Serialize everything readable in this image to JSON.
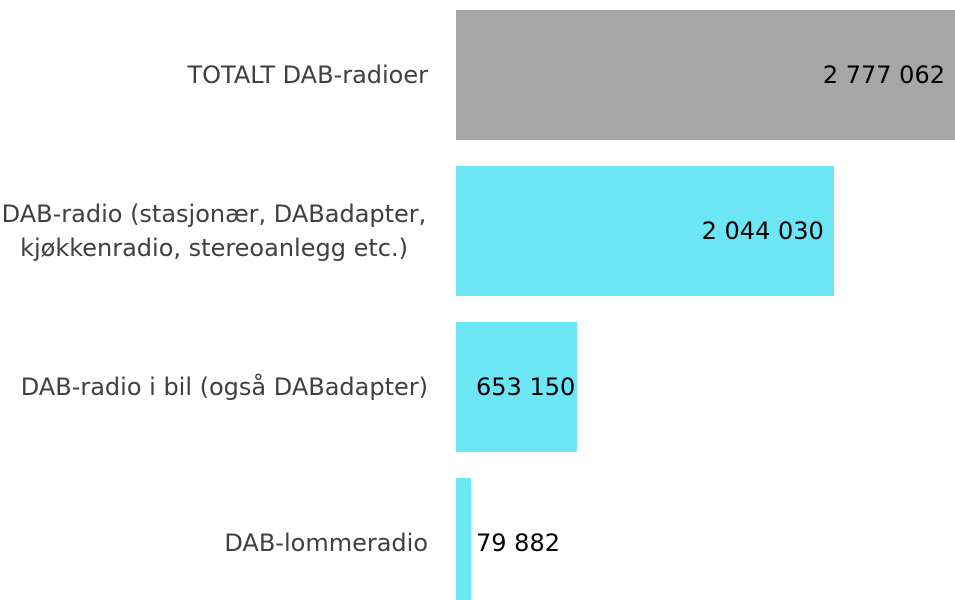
{
  "chart_data": {
    "type": "bar",
    "orientation": "horizontal",
    "categories": [
      "TOTALT DAB-radioer",
      "DAB-radio (stasjonær, DABadapter, kjøkkenradio, stereoanlegg etc.)",
      "DAB-radio i bil (også DABadapter)",
      "DAB-lommeradio"
    ],
    "values": [
      2777062,
      2044030,
      653150,
      79882
    ],
    "value_labels": [
      "2 777 062",
      "2 044 030",
      "653 150",
      "79 882"
    ],
    "colors": [
      "#a6a6a6",
      "#6ce6f5",
      "#6ce6f5",
      "#6ce6f5"
    ],
    "xlim": [
      0,
      2700000
    ]
  }
}
